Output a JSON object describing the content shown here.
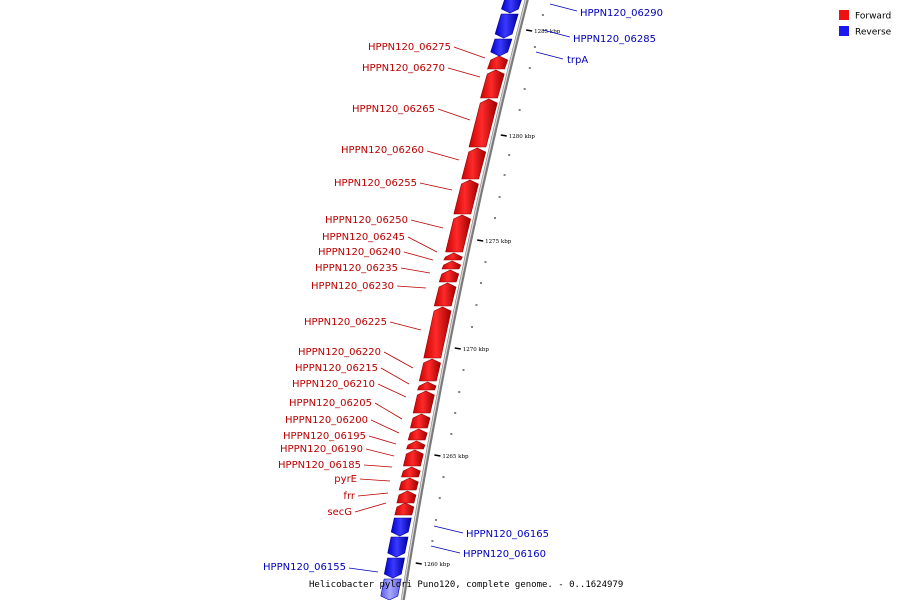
{
  "caption": "Helicobacter pylori Puno120, complete genome. - 0..1624979",
  "legend": [
    {
      "label": "Forward",
      "color": "#ee1111"
    },
    {
      "label": "Reverse",
      "color": "#1a1aee"
    }
  ],
  "colors": {
    "forward_label": "#bb0000",
    "reverse_label": "#0000bb",
    "backbone": "#888888"
  },
  "scale_ticks": [
    {
      "label": "1285 kbp"
    },
    {
      "label": "1280 kbp"
    },
    {
      "label": "1275 kbp"
    },
    {
      "label": "1270 kbp"
    },
    {
      "label": "1265 kbp"
    },
    {
      "label": "1260 kbp"
    }
  ],
  "features": [
    {
      "name": "HPPN120_06290",
      "strand": "reverse"
    },
    {
      "name": "HPPN120_06285",
      "strand": "reverse"
    },
    {
      "name": "trpA",
      "strand": "reverse"
    },
    {
      "name": "HPPN120_06275",
      "strand": "forward"
    },
    {
      "name": "HPPN120_06270",
      "strand": "forward"
    },
    {
      "name": "HPPN120_06265",
      "strand": "forward"
    },
    {
      "name": "HPPN120_06260",
      "strand": "forward"
    },
    {
      "name": "HPPN120_06255",
      "strand": "forward"
    },
    {
      "name": "HPPN120_06250",
      "strand": "forward"
    },
    {
      "name": "HPPN120_06245",
      "strand": "forward"
    },
    {
      "name": "HPPN120_06240",
      "strand": "forward"
    },
    {
      "name": "HPPN120_06235",
      "strand": "forward"
    },
    {
      "name": "HPPN120_06230",
      "strand": "forward"
    },
    {
      "name": "HPPN120_06225",
      "strand": "forward"
    },
    {
      "name": "HPPN120_06220",
      "strand": "forward"
    },
    {
      "name": "HPPN120_06215",
      "strand": "forward"
    },
    {
      "name": "HPPN120_06210",
      "strand": "forward"
    },
    {
      "name": "HPPN120_06205",
      "strand": "forward"
    },
    {
      "name": "HPPN120_06200",
      "strand": "forward"
    },
    {
      "name": "HPPN120_06195",
      "strand": "forward"
    },
    {
      "name": "HPPN120_06190",
      "strand": "forward"
    },
    {
      "name": "HPPN120_06185",
      "strand": "forward"
    },
    {
      "name": "pyrE",
      "strand": "forward"
    },
    {
      "name": "frr",
      "strand": "forward"
    },
    {
      "name": "secG",
      "strand": "forward"
    },
    {
      "name": "HPPN120_06165",
      "strand": "reverse"
    },
    {
      "name": "HPPN120_06160",
      "strand": "reverse"
    },
    {
      "name": "HPPN120_06155",
      "strand": "reverse"
    }
  ]
}
